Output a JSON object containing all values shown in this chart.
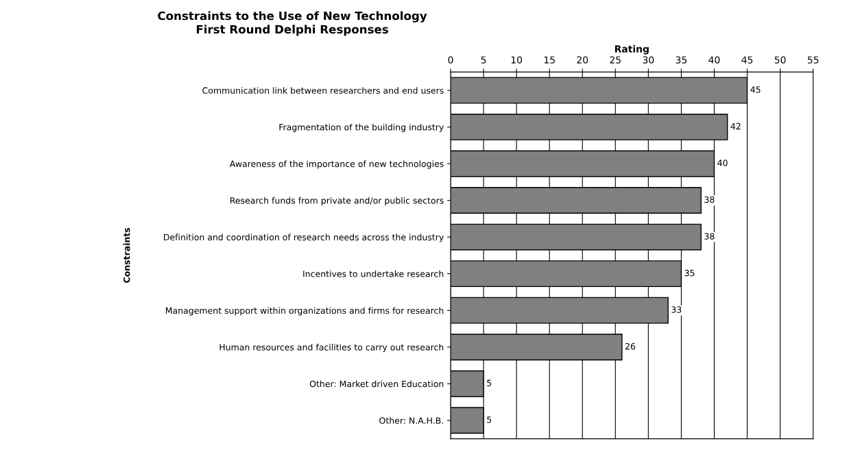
{
  "chart_data": {
    "type": "bar",
    "orientation": "horizontal",
    "title": "Constraints to the Use of New Technology",
    "subtitle": "First Round Delphi Responses",
    "xlabel": "Rating",
    "ylabel": "Constraints",
    "categories": [
      "Communication link between researchers and end users",
      "Fragmentation of the building industry",
      "Awareness of the importance of new technologies",
      "Research funds from private and/or public sectors",
      "Definition and coordination of research needs across the industry",
      "Incentives to undertake research",
      "Management support within organizations and firms for research",
      "Human resources and facilities to carry out research",
      "Other: Market driven Education",
      "Other: N.A.H.B."
    ],
    "values": [
      45,
      42,
      40,
      38,
      38,
      35,
      33,
      26,
      5,
      5
    ],
    "color": "#808080",
    "xlim": [
      0,
      55
    ],
    "xticks": [
      0,
      5,
      10,
      15,
      20,
      25,
      30,
      35,
      40,
      45,
      50,
      55
    ],
    "grid": "x",
    "data_labels": true,
    "legend": false
  }
}
